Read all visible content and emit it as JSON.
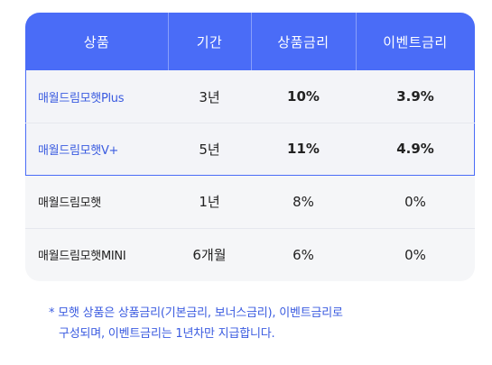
{
  "table": {
    "headers": [
      "상품",
      "기간",
      "상품금리",
      "이벤트금리"
    ],
    "rows": [
      {
        "name": "매월드림모햇Plus",
        "period": "3년",
        "rate": "10%",
        "event_rate": "3.9%"
      },
      {
        "name": "매월드림모햇V+",
        "period": "5년",
        "rate": "11%",
        "event_rate": "4.9%"
      },
      {
        "name": "매월드림모햇",
        "period": "1년",
        "rate": "8%",
        "event_rate": "0%"
      },
      {
        "name": "매월드림모햇MINI",
        "period": "6개월",
        "rate": "6%",
        "event_rate": "0%"
      }
    ]
  },
  "footnote": {
    "line1": "* 모햇 상품은 상품금리(기본금리, 보너스금리), 이벤트금리로",
    "line2": "구성되며, 이벤트금리는 1년차만 지급합니다."
  },
  "colors": {
    "accent": "#4a6cf7",
    "highlight_text": "#3a5be0",
    "row_bg": "#f5f6f8"
  }
}
